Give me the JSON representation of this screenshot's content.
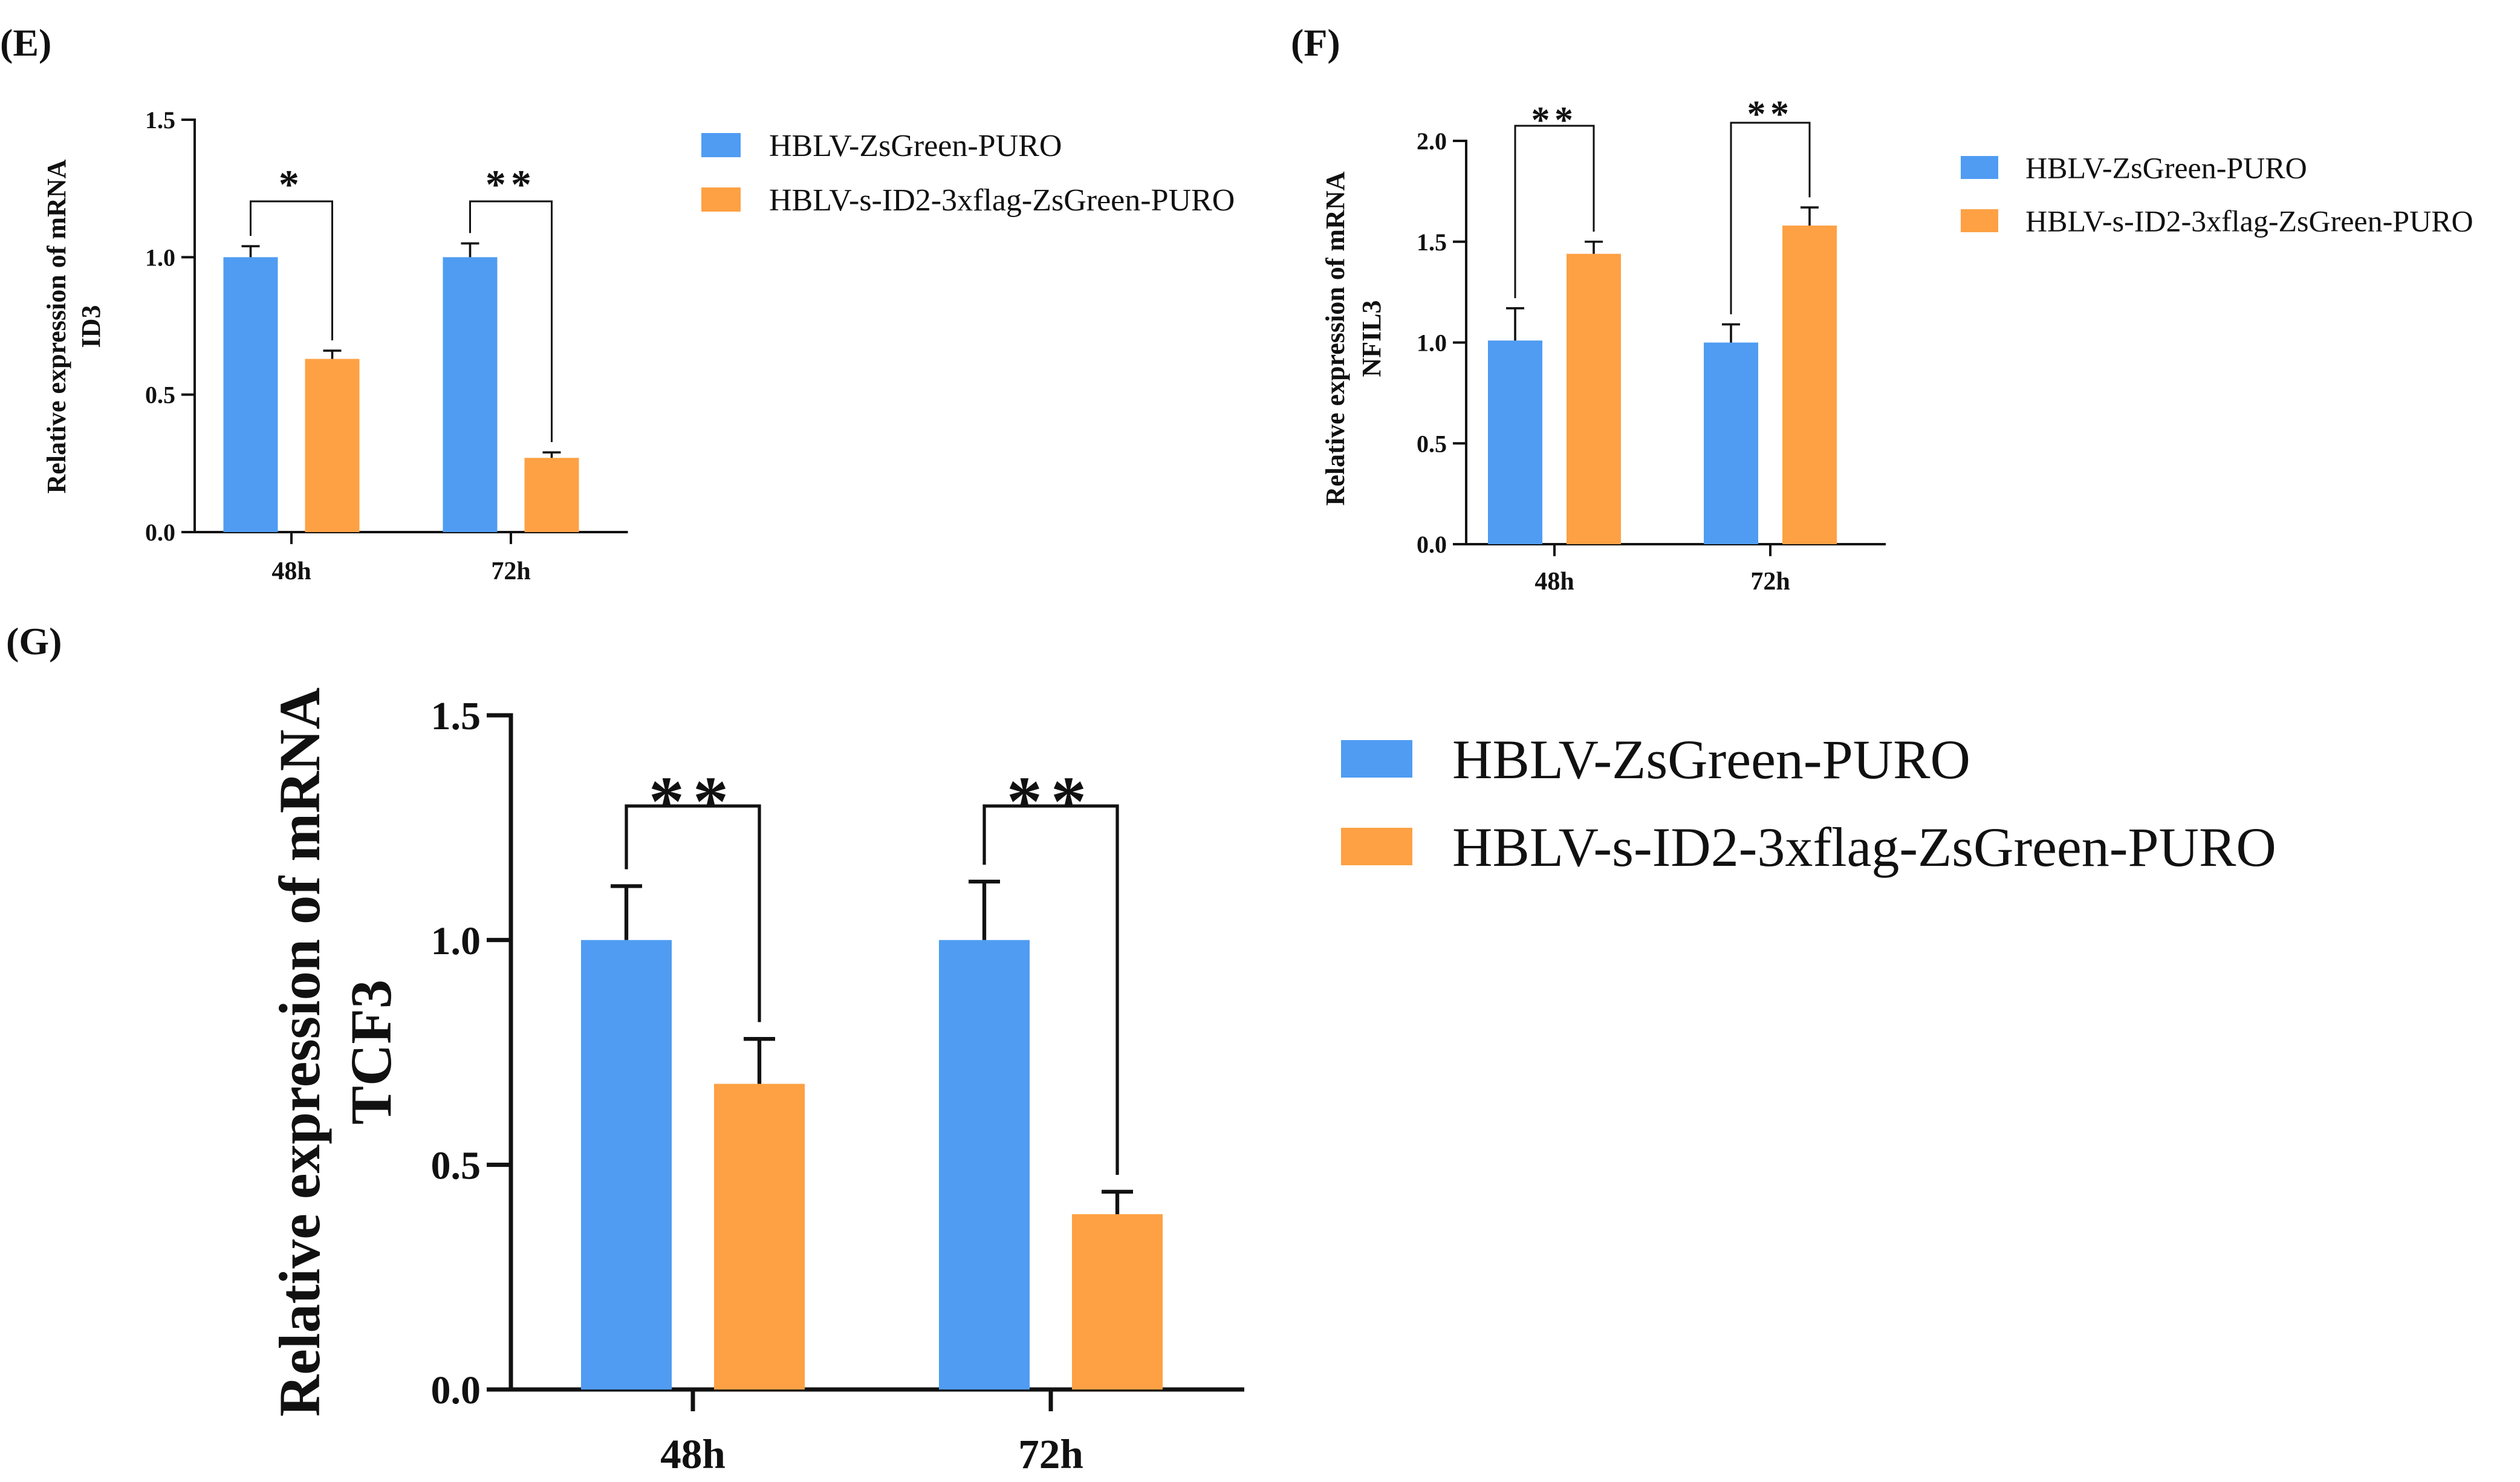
{
  "colors": {
    "series1": "#4f9cf2",
    "series2": "#fda144",
    "axis": "#111111"
  },
  "chart_data": [
    {
      "panel": "(E)",
      "type": "bar",
      "categories": [
        "48h",
        "72h"
      ],
      "series": [
        {
          "name": "HBLV-ZsGreen-PURO",
          "values": [
            1.0,
            1.0
          ],
          "errors": [
            0.04,
            0.05
          ]
        },
        {
          "name": "HBLV-s-ID2-3xflag-ZsGreen-PURO",
          "values": [
            0.63,
            0.27
          ],
          "errors": [
            0.03,
            0.02
          ]
        }
      ],
      "significance": [
        "*",
        "**"
      ],
      "ylabel": [
        "Relative expression of mRNA",
        "ID3"
      ],
      "ylim": [
        0,
        1.5
      ],
      "yticks": [
        0.0,
        0.5,
        1.0,
        1.5
      ],
      "ytick_labels": [
        "0.0",
        "0.5",
        "1.0",
        "1.5"
      ]
    },
    {
      "panel": "(F)",
      "type": "bar",
      "categories": [
        "48h",
        "72h"
      ],
      "series": [
        {
          "name": "HBLV-ZsGreen-PURO",
          "values": [
            1.01,
            1.0
          ],
          "errors": [
            0.16,
            0.09
          ]
        },
        {
          "name": "HBLV-s-ID2-3xflag-ZsGreen-PURO",
          "values": [
            1.44,
            1.58
          ],
          "errors": [
            0.06,
            0.09
          ]
        }
      ],
      "significance": [
        "**",
        "**"
      ],
      "ylabel": [
        "Relative expression of mRNA",
        "NFIL3"
      ],
      "ylim": [
        0,
        2.0
      ],
      "yticks": [
        0.0,
        0.5,
        1.0,
        1.5,
        2.0
      ],
      "ytick_labels": [
        "0.0",
        "0.5",
        "1.0",
        "1.5",
        "2.0"
      ]
    },
    {
      "panel": "(G)",
      "type": "bar",
      "categories": [
        "48h",
        "72h"
      ],
      "series": [
        {
          "name": "HBLV-ZsGreen-PURO",
          "values": [
            1.0,
            1.0
          ],
          "errors": [
            0.12,
            0.13
          ]
        },
        {
          "name": "HBLV-s-ID2-3xflag-ZsGreen-PURO",
          "values": [
            0.68,
            0.39
          ],
          "errors": [
            0.1,
            0.05
          ]
        }
      ],
      "significance": [
        "**",
        "**"
      ],
      "ylabel": [
        "Relative expression of mRNA",
        "TCF3"
      ],
      "ylim": [
        0,
        1.5
      ],
      "yticks": [
        0.0,
        0.5,
        1.0,
        1.5
      ],
      "ytick_labels": [
        "0.0",
        "0.5",
        "1.0",
        "1.5"
      ]
    }
  ]
}
